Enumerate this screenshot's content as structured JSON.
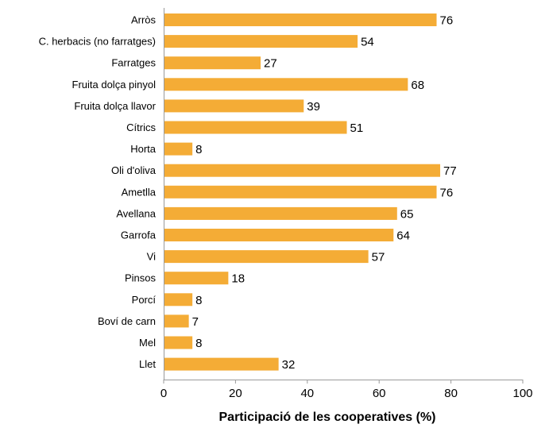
{
  "chart_data": {
    "type": "bar",
    "orientation": "horizontal",
    "categories": [
      "Arròs",
      "C. herbacis (no farratges)",
      "Farratges",
      "Fruita dolça pinyol",
      "Fruita dolça llavor",
      "Cítrics",
      "Horta",
      "Oli d'oliva",
      "Ametlla",
      "Avellana",
      "Garrofa",
      "Vi",
      "Pinsos",
      "Porcí",
      "Boví de carn",
      "Mel",
      "Llet"
    ],
    "values": [
      76,
      54,
      27,
      68,
      39,
      51,
      8,
      77,
      76,
      65,
      64,
      57,
      18,
      8,
      7,
      8,
      32
    ],
    "xlabel": "Participació de les cooperatives (%)",
    "ylabel": "",
    "xlim": [
      0,
      100
    ],
    "xticks": [
      0,
      20,
      40,
      60,
      80,
      100
    ],
    "data_labels": true,
    "grid": false,
    "legend": "none",
    "bar_color": "#f4ac36"
  }
}
